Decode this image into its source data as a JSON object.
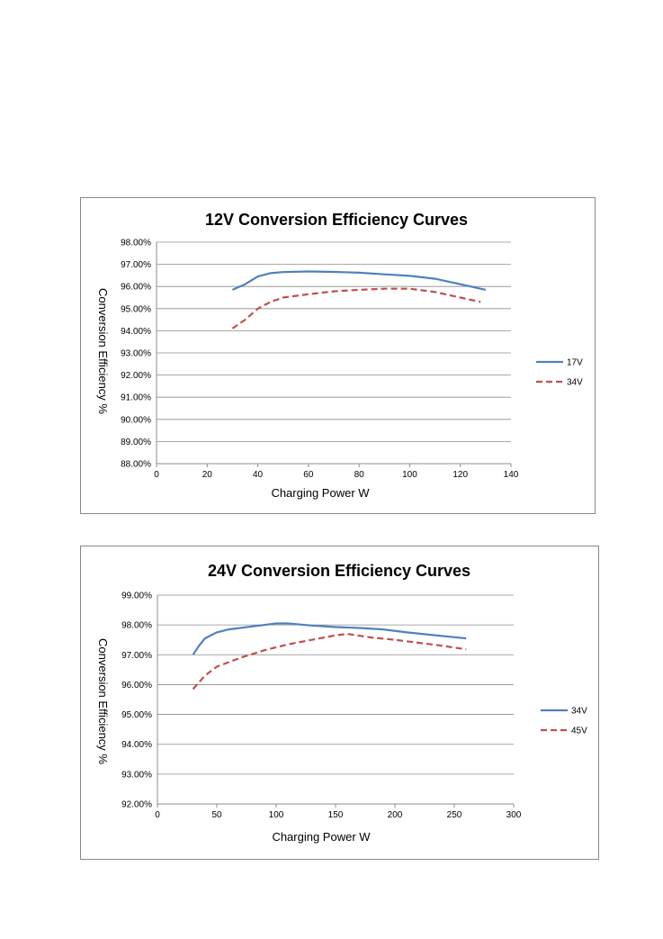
{
  "chart_data": [
    {
      "type": "line",
      "title": "12V Conversion Efficiency Curves",
      "xlabel": "Charging Power W",
      "ylabel": "Conversion Efficiency %",
      "xlim": [
        0,
        140
      ],
      "ylim": [
        88,
        98
      ],
      "xticks": [
        "0",
        "20",
        "40",
        "60",
        "80",
        "100",
        "120",
        "140"
      ],
      "yticks": [
        "88.00%",
        "89.00%",
        "90.00%",
        "91.00%",
        "92.00%",
        "93.00%",
        "94.00%",
        "95.00%",
        "96.00%",
        "97.00%",
        "98.00%"
      ],
      "grid": true,
      "legend_position": "right",
      "series": [
        {
          "name": "17V",
          "color": "#4F81BD",
          "style": "solid",
          "points": [
            [
              30,
              95.85
            ],
            [
              35,
              96.1
            ],
            [
              40,
              96.45
            ],
            [
              45,
              96.6
            ],
            [
              50,
              96.65
            ],
            [
              60,
              96.68
            ],
            [
              70,
              96.66
            ],
            [
              80,
              96.62
            ],
            [
              90,
              96.55
            ],
            [
              100,
              96.48
            ],
            [
              110,
              96.35
            ],
            [
              120,
              96.1
            ],
            [
              130,
              95.85
            ]
          ]
        },
        {
          "name": "34V",
          "color": "#C0504D",
          "style": "dashed",
          "points": [
            [
              30,
              94.1
            ],
            [
              35,
              94.5
            ],
            [
              40,
              95.0
            ],
            [
              45,
              95.3
            ],
            [
              50,
              95.5
            ],
            [
              60,
              95.65
            ],
            [
              70,
              95.78
            ],
            [
              80,
              95.85
            ],
            [
              90,
              95.9
            ],
            [
              100,
              95.9
            ],
            [
              110,
              95.75
            ],
            [
              120,
              95.5
            ],
            [
              128,
              95.3
            ]
          ]
        }
      ]
    },
    {
      "type": "line",
      "title": "24V Conversion Efficiency Curves",
      "xlabel": "Charging Power W",
      "ylabel": "Conversion Efficiency %",
      "xlim": [
        0,
        300
      ],
      "ylim": [
        92,
        99
      ],
      "xticks": [
        "0",
        "50",
        "100",
        "150",
        "200",
        "250",
        "300"
      ],
      "yticks": [
        "92.00%",
        "93.00%",
        "94.00%",
        "95.00%",
        "96.00%",
        "97.00%",
        "98.00%",
        "99.00%"
      ],
      "grid": true,
      "legend_position": "right",
      "series": [
        {
          "name": "34V",
          "color": "#4F81BD",
          "style": "solid",
          "points": [
            [
              30,
              97.0
            ],
            [
              35,
              97.3
            ],
            [
              40,
              97.55
            ],
            [
              50,
              97.75
            ],
            [
              60,
              97.85
            ],
            [
              80,
              97.95
            ],
            [
              100,
              98.05
            ],
            [
              110,
              98.05
            ],
            [
              130,
              97.98
            ],
            [
              150,
              97.93
            ],
            [
              170,
              97.9
            ],
            [
              190,
              97.85
            ],
            [
              210,
              97.75
            ],
            [
              230,
              97.67
            ],
            [
              260,
              97.55
            ]
          ]
        },
        {
          "name": "45V",
          "color": "#C0504D",
          "style": "dashed",
          "points": [
            [
              30,
              95.85
            ],
            [
              40,
              96.3
            ],
            [
              50,
              96.6
            ],
            [
              70,
              96.9
            ],
            [
              90,
              97.15
            ],
            [
              110,
              97.35
            ],
            [
              130,
              97.5
            ],
            [
              150,
              97.65
            ],
            [
              160,
              97.7
            ],
            [
              180,
              97.58
            ],
            [
              200,
              97.5
            ],
            [
              220,
              97.4
            ],
            [
              240,
              97.3
            ],
            [
              260,
              97.18
            ]
          ]
        }
      ]
    }
  ]
}
